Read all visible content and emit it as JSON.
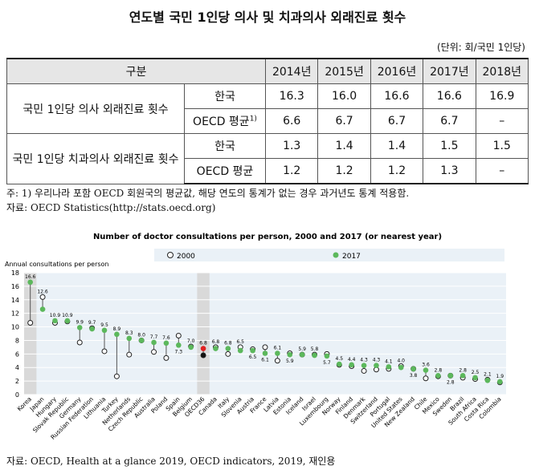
{
  "title": "연도별 국민 1인당 의사 및 치과의사 외래진료 횟수",
  "unit": "(단위: 회/국민 1인당)",
  "table": {
    "header": [
      "구분",
      "2014년",
      "2015년",
      "2016년",
      "2017년",
      "2018년"
    ],
    "rows": [
      {
        "group": "국민 1인당 의사 외래진료 횟수",
        "sub": "한국",
        "sup": "",
        "values": [
          "16.3",
          "16.0",
          "16.6",
          "16.6",
          "16.9"
        ]
      },
      {
        "group": "",
        "sub": "OECD 평균",
        "sup": "1)",
        "values": [
          "6.6",
          "6.7",
          "6.7",
          "6.7",
          "–"
        ]
      },
      {
        "group": "국민 1인당 치과의사 외래진료 횟수",
        "sub": "한국",
        "sup": "",
        "values": [
          "1.3",
          "1.4",
          "1.4",
          "1.5",
          "1.5"
        ]
      },
      {
        "group": "",
        "sub": "OECD 평균",
        "sup": "",
        "values": [
          "1.2",
          "1.2",
          "1.2",
          "1.3",
          "–"
        ]
      }
    ]
  },
  "note": "주: 1) 우리나라 포함 OECD 회원국의 평균값, 해당 연도의 통계가 없는 경우 과거년도 통계 적용함.",
  "source_table": "자료: OECD Statistics(http://stats.oecd.org)",
  "source_chart": "자료: OECD, Health at a glance 2019, OECD indicators, 2019, 재인용",
  "colors": {
    "green": "#5cb85c",
    "red": "#e02020",
    "highlight": "#d9d9d9",
    "grid": "#ffffff",
    "bg": "#eaf1f7"
  },
  "chart_data": {
    "type": "scatter",
    "title": "Number of doctor consultations per person, 2000 and 2017 (or nearest year)",
    "ylabel": "Annual consultations per person",
    "ylim": [
      0,
      18
    ],
    "yticks": [
      0,
      2,
      4,
      6,
      8,
      10,
      12,
      14,
      16,
      18
    ],
    "series": [
      {
        "name": "2000"
      },
      {
        "name": "2017"
      }
    ],
    "categories": [
      "Korea",
      "Japan",
      "Hungary",
      "Slovak Republic",
      "Germany",
      "Russian Federation",
      "Lithuania",
      "Turkey",
      "Netherlands",
      "Czech Republic",
      "Australia",
      "Poland",
      "Spain",
      "Belgium",
      "OECD36",
      "Canada",
      "Italy",
      "Slovenia",
      "Austria",
      "France",
      "Latvia",
      "Estonia",
      "Iceland",
      "Israel",
      "Luxembourg",
      "Norway",
      "Finland",
      "Denmark",
      "Switzerland",
      "Portugal",
      "United States",
      "New Zealand",
      "Chile",
      "Mexico",
      "Sweden",
      "Brazil",
      "South Africa",
      "Costa Rica",
      "Colombia"
    ],
    "values_2017": [
      16.6,
      12.6,
      10.9,
      10.9,
      9.9,
      9.7,
      9.5,
      8.9,
      8.3,
      8.0,
      7.7,
      7.6,
      7.3,
      7.0,
      6.8,
      6.8,
      6.8,
      6.5,
      6.5,
      6.1,
      6.1,
      5.9,
      5.9,
      5.8,
      5.7,
      4.5,
      4.4,
      4.3,
      4.3,
      4.1,
      4.0,
      3.8,
      3.6,
      2.8,
      2.8,
      2.8,
      2.5,
      2.1,
      1.9
    ],
    "values_2000": [
      10.6,
      14.4,
      10.6,
      10.8,
      7.7,
      9.8,
      6.4,
      2.7,
      5.9,
      8.0,
      6.3,
      5.4,
      8.7,
      7.1,
      5.8,
      7.0,
      6.0,
      7.0,
      6.7,
      7.0,
      5.0,
      6.1,
      5.9,
      5.9,
      6.0,
      4.4,
      4.2,
      3.5,
      3.7,
      3.8,
      4.2,
      3.8,
      2.4,
      2.7,
      2.8,
      2.5,
      2.3,
      2.2,
      1.8
    ],
    "labels_2017": [
      "16.6",
      "12.6",
      "10.9",
      "10.9",
      "9.9",
      "9.7",
      "9.5",
      "8.9",
      "8.3",
      "8.0",
      "7.7",
      "7.6",
      "7.3",
      "7.0",
      "6.8",
      "6.8",
      "6.8",
      "6.5",
      "6.5",
      "6.1",
      "6.1",
      "5.9",
      "5.9",
      "5.8",
      "5.7",
      "4.5",
      "4.4",
      "4.3",
      "4.3",
      "4.1",
      "4.0",
      "3.8",
      "3.6",
      "2.8",
      "2.8",
      "2.8",
      "2.5",
      "2.1",
      "1.9"
    ],
    "label_below": [
      false,
      false,
      false,
      false,
      false,
      false,
      false,
      false,
      false,
      false,
      false,
      false,
      true,
      false,
      false,
      false,
      false,
      false,
      true,
      true,
      false,
      true,
      false,
      false,
      true,
      false,
      false,
      false,
      false,
      false,
      false,
      true,
      false,
      false,
      true,
      false,
      false,
      false,
      false
    ],
    "highlight_index": 14,
    "highlight_columns": [
      0,
      14
    ]
  }
}
